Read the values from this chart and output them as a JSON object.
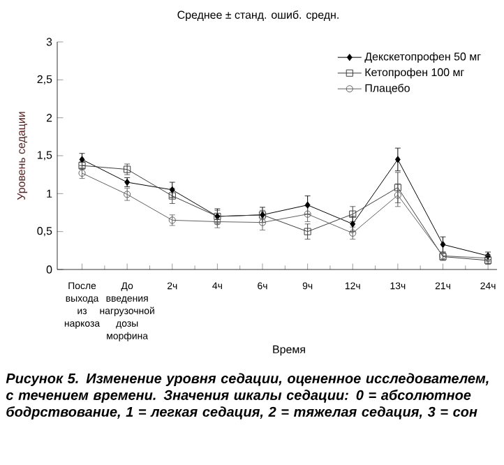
{
  "chart_data": {
    "type": "line",
    "title": "Среднее ± станд. ошиб. средн.",
    "xlabel": "Время",
    "ylabel": "Уровень седации",
    "categories": [
      "После выхода из наркоза",
      "До введения нагрузочной дозы морфина",
      "2ч",
      "4ч",
      "6ч",
      "9ч",
      "12ч",
      "13ч",
      "21ч",
      "24ч"
    ],
    "series": [
      {
        "name": "Декскетопрофен 50 мг",
        "color": "#000000",
        "marker": "diamond",
        "values": [
          1.45,
          1.15,
          1.05,
          0.7,
          0.72,
          0.85,
          0.6,
          1.45,
          0.33,
          0.18
        ],
        "errors": [
          0.08,
          0.06,
          0.1,
          0.1,
          0.1,
          0.12,
          0.1,
          0.15,
          0.1,
          0.05
        ]
      },
      {
        "name": "Кетопрофен 100 мг",
        "color": "#3c3c3c",
        "marker": "square",
        "values": [
          1.37,
          1.32,
          0.97,
          0.7,
          0.72,
          0.5,
          0.73,
          1.08,
          0.17,
          0.12
        ],
        "errors": [
          0.05,
          0.07,
          0.1,
          0.08,
          0.06,
          0.1,
          0.1,
          0.2,
          0.05,
          0.05
        ]
      },
      {
        "name": "Плацебо",
        "color": "#606060",
        "marker": "circle",
        "values": [
          1.27,
          0.99,
          0.65,
          0.63,
          0.62,
          0.73,
          0.48,
          0.98,
          0.18,
          0.15
        ],
        "errors": [
          0.07,
          0.08,
          0.07,
          0.08,
          0.1,
          0.1,
          0.08,
          0.15,
          0.05,
          0.05
        ]
      }
    ],
    "ylim": [
      0,
      3
    ],
    "yticks": [
      0,
      {
        "value": 0.5,
        "label": "0,5"
      },
      1,
      {
        "value": 1.5,
        "label": "1,5"
      },
      2,
      {
        "value": 2.5,
        "label": "2,5"
      },
      3
    ],
    "legend": "top right",
    "grid": false,
    "annotations": [
      "Рисунок 5. Изменение уровня седации, оцененное исследователем, с течением времени. Значения шкалы седации: 0 = абсолютное бодрствование, 1 = легкая седация, 2 = тяжелая седация, 3 = сон"
    ]
  }
}
